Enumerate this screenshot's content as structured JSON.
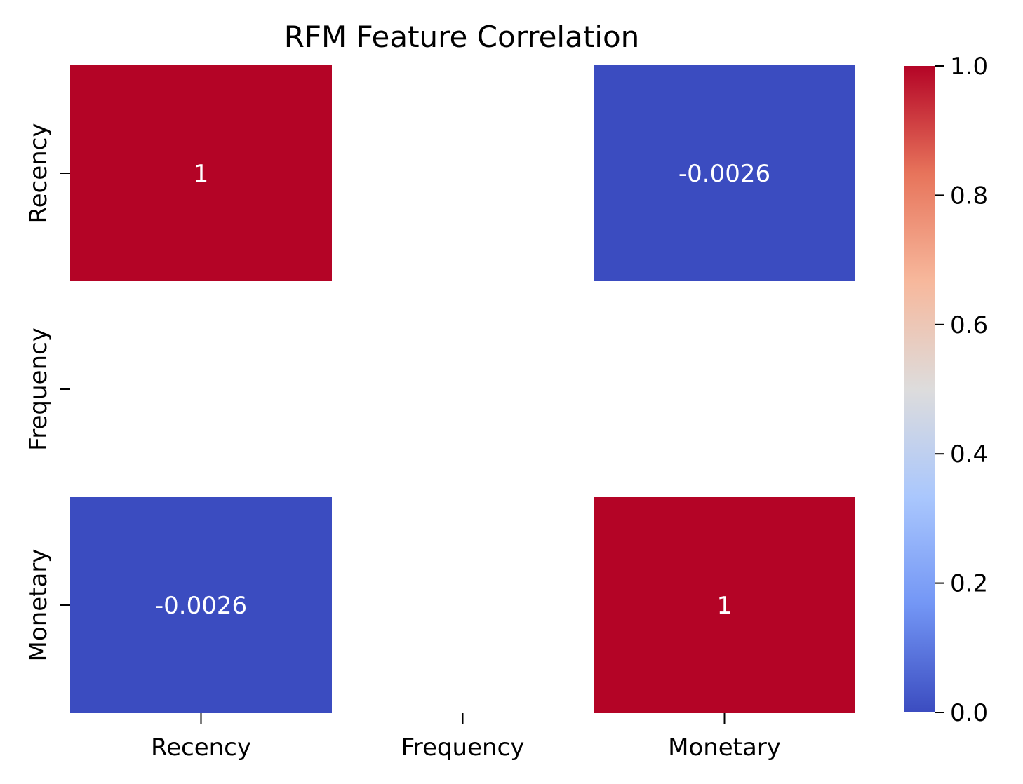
{
  "chart_data": {
    "type": "heatmap",
    "title": "RFM Feature Correlation",
    "x_categories": [
      "Recency",
      "Frequency",
      "Monetary"
    ],
    "y_categories": [
      "Recency",
      "Frequency",
      "Monetary"
    ],
    "values": [
      [
        1,
        null,
        -0.0026
      ],
      [
        null,
        null,
        null
      ],
      [
        -0.0026,
        null,
        1
      ]
    ],
    "annotations": [
      [
        "1",
        "",
        "-0.0026"
      ],
      [
        "",
        "",
        ""
      ],
      [
        "-0.0026",
        "",
        "1"
      ]
    ],
    "colorbar": {
      "range": [
        0,
        1
      ],
      "ticks": [
        0.0,
        0.2,
        0.4,
        0.6,
        0.8,
        1.0
      ],
      "tick_labels": [
        "0.0",
        "0.2",
        "0.4",
        "0.6",
        "0.8",
        "1.0"
      ],
      "colormap": "coolwarm",
      "colors": [
        "#3b4cc0",
        "#7396f5",
        "#aac7fd",
        "#dddcdc",
        "#f7b89c",
        "#e7745b",
        "#b40426"
      ]
    },
    "annotation_color": "#ffffff"
  }
}
